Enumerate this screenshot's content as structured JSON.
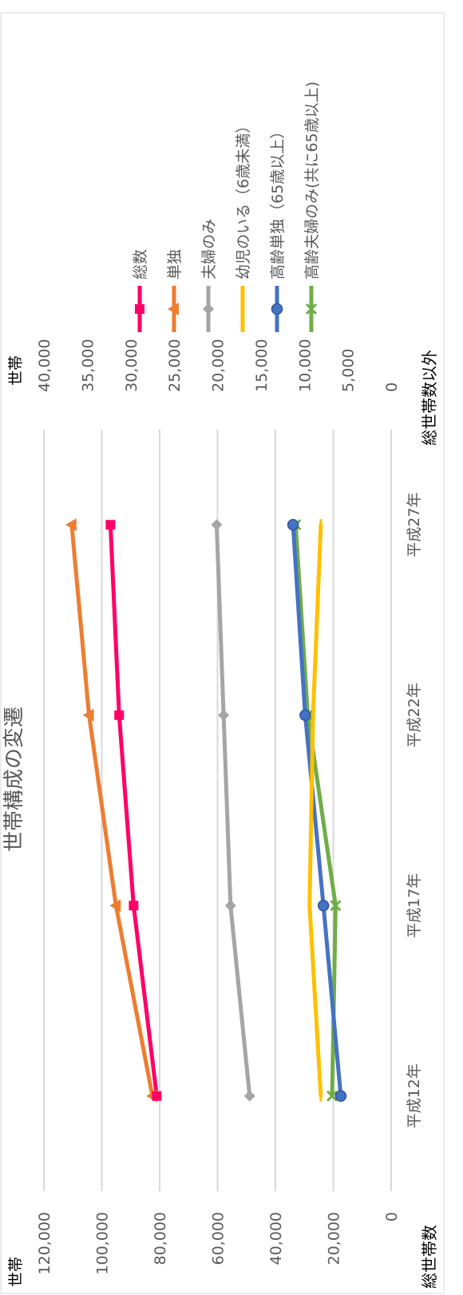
{
  "chart_data": {
    "type": "line",
    "title": "世帯構成の変遷",
    "categories": [
      "平成12年",
      "平成17年",
      "平成22年",
      "平成27年"
    ],
    "left_axis": {
      "unit": "世帯",
      "label": "総世帯数",
      "ylim": [
        0,
        120000
      ],
      "ticks": [
        "0",
        "20,000",
        "40,000",
        "60,000",
        "80,000",
        "100,000",
        "120,000"
      ]
    },
    "right_axis": {
      "unit": "世帯",
      "label": "総世帯数以外",
      "ylim": [
        0,
        40000
      ],
      "ticks": [
        "0",
        "5,000",
        "10,000",
        "15,000",
        "20,000",
        "25,000",
        "30,000",
        "35,000",
        "40,000"
      ]
    },
    "series": [
      {
        "name": "総数",
        "axis": "left",
        "color": "#FF0066",
        "marker": "square",
        "values": [
          81000,
          89000,
          94000,
          97000
        ]
      },
      {
        "name": "単独",
        "axis": "right",
        "color": "#ED7D31",
        "marker": "triangle",
        "values": [
          27500,
          31700,
          34800,
          36800
        ]
      },
      {
        "name": "夫婦のみ",
        "axis": "right",
        "color": "#A5A5A5",
        "marker": "diamond",
        "values": [
          16300,
          18500,
          19300,
          20100
        ]
      },
      {
        "name": "幼児のいる（6歳未満）",
        "axis": "right",
        "color": "#FFC000",
        "marker": "dash",
        "values": [
          8100,
          9400,
          9000,
          8100
        ]
      },
      {
        "name": "高齢単独（65歳以上）",
        "axis": "right",
        "color": "#4472C4",
        "marker": "circle",
        "values": [
          5800,
          7800,
          9900,
          11300
        ]
      },
      {
        "name": "高齢夫婦のみ(共に65歳以上)",
        "axis": "right",
        "color": "#70AD47",
        "marker": "x",
        "values": [
          6800,
          6400,
          9600,
          11000
        ]
      }
    ],
    "grid": true,
    "legend_position": "right"
  }
}
